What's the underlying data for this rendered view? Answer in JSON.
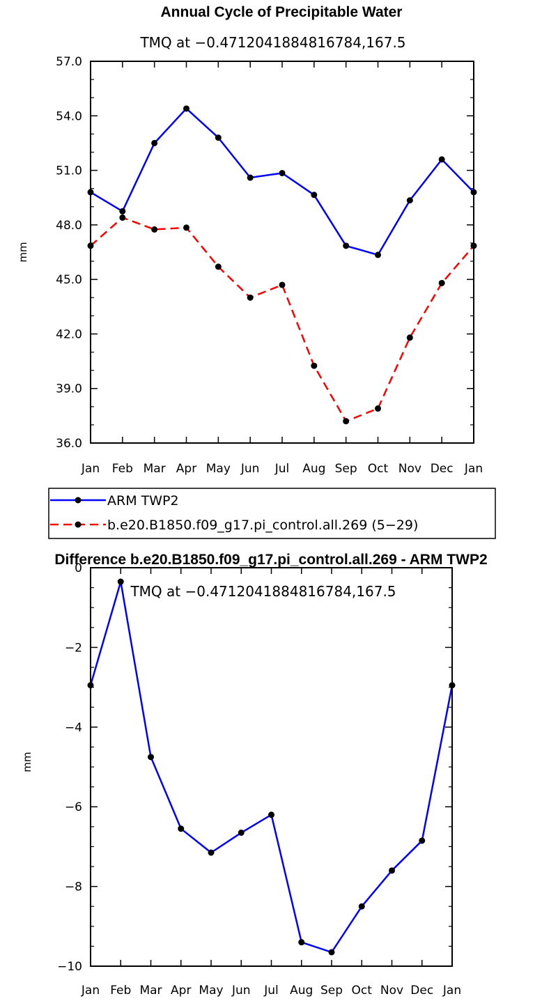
{
  "chart_data": [
    {
      "type": "line",
      "title": "Annual Cycle of Precipitable Water",
      "subtitle": "TMQ at −0.4712041884816784,167.5",
      "xlabel": "",
      "ylabel": "mm",
      "categories": [
        "Jan",
        "Feb",
        "Mar",
        "Apr",
        "May",
        "Jun",
        "Jul",
        "Aug",
        "Sep",
        "Oct",
        "Nov",
        "Dec",
        "Jan"
      ],
      "ylim": [
        36.0,
        57.0
      ],
      "yticks": [
        36.0,
        39.0,
        42.0,
        45.0,
        48.0,
        51.0,
        54.0,
        57.0
      ],
      "ytick_labels": [
        "36.0",
        "39.0",
        "42.0",
        "45.0",
        "48.0",
        "51.0",
        "54.0",
        "57.0"
      ],
      "grid": false,
      "legend_position": "bottom",
      "series": [
        {
          "name": "ARM TWP2",
          "color": "#0000ff",
          "dash": "solid",
          "values": [
            49.8,
            48.75,
            52.5,
            54.4,
            52.8,
            50.6,
            50.85,
            49.65,
            46.85,
            46.35,
            49.35,
            51.6,
            49.8
          ]
        },
        {
          "name": "b.e20.B1850.f09_g17.pi_control.all.269 (5−29)",
          "color": "#ff0000",
          "dash": "dashed",
          "values": [
            46.85,
            48.4,
            47.75,
            47.85,
            45.7,
            44.0,
            44.7,
            40.25,
            37.2,
            37.9,
            41.8,
            44.8,
            46.85
          ]
        }
      ]
    },
    {
      "type": "line",
      "title": "Difference b.e20.B1850.f09_g17.pi_control.all.269 - ARM TWP2",
      "subtitle": "TMQ at −0.4712041884816784,167.5",
      "xlabel": "",
      "ylabel": "mm",
      "categories": [
        "Jan",
        "Feb",
        "Mar",
        "Apr",
        "May",
        "Jun",
        "Jul",
        "Aug",
        "Sep",
        "Oct",
        "Nov",
        "Dec",
        "Jan"
      ],
      "ylim": [
        -10,
        0
      ],
      "yticks": [
        -10,
        -8,
        -6,
        -4,
        -2,
        0
      ],
      "ytick_labels": [
        "−10",
        "−8",
        "−6",
        "−4",
        "−2",
        "0"
      ],
      "grid": false,
      "series": [
        {
          "color": "#0000ff",
          "dash": "solid",
          "values": [
            -2.95,
            -0.35,
            -4.75,
            -6.55,
            -7.15,
            -6.65,
            -6.2,
            -9.4,
            -9.65,
            -8.5,
            -7.6,
            -6.85,
            -2.95
          ]
        }
      ]
    }
  ]
}
